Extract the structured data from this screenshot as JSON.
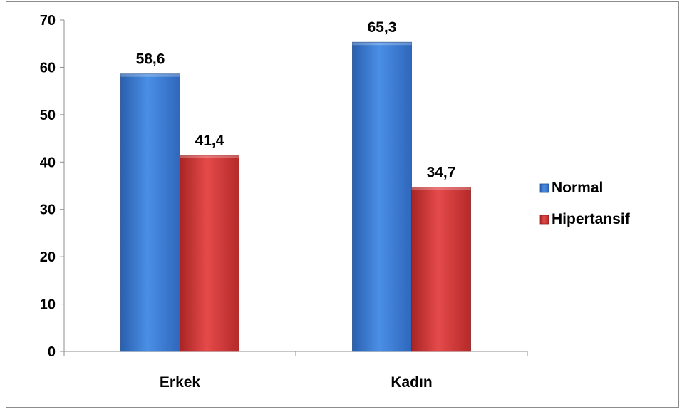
{
  "chart_data": {
    "type": "bar",
    "categories": [
      "Erkek",
      "Kadın"
    ],
    "series": [
      {
        "name": "Normal",
        "values": [
          58.6,
          65.3
        ],
        "labels": [
          "58,6",
          "65,3"
        ],
        "color": "#3d7fd9"
      },
      {
        "name": "Hipertansif",
        "values": [
          41.4,
          34.7
        ],
        "labels": [
          "41,4",
          "34,7"
        ],
        "color": "#d93a3a"
      }
    ],
    "title": "",
    "xlabel": "",
    "ylabel": "",
    "ylim": [
      0,
      70
    ],
    "yticks": [
      0,
      10,
      20,
      30,
      40,
      50,
      60,
      70
    ],
    "grid": false,
    "legend": "right"
  }
}
